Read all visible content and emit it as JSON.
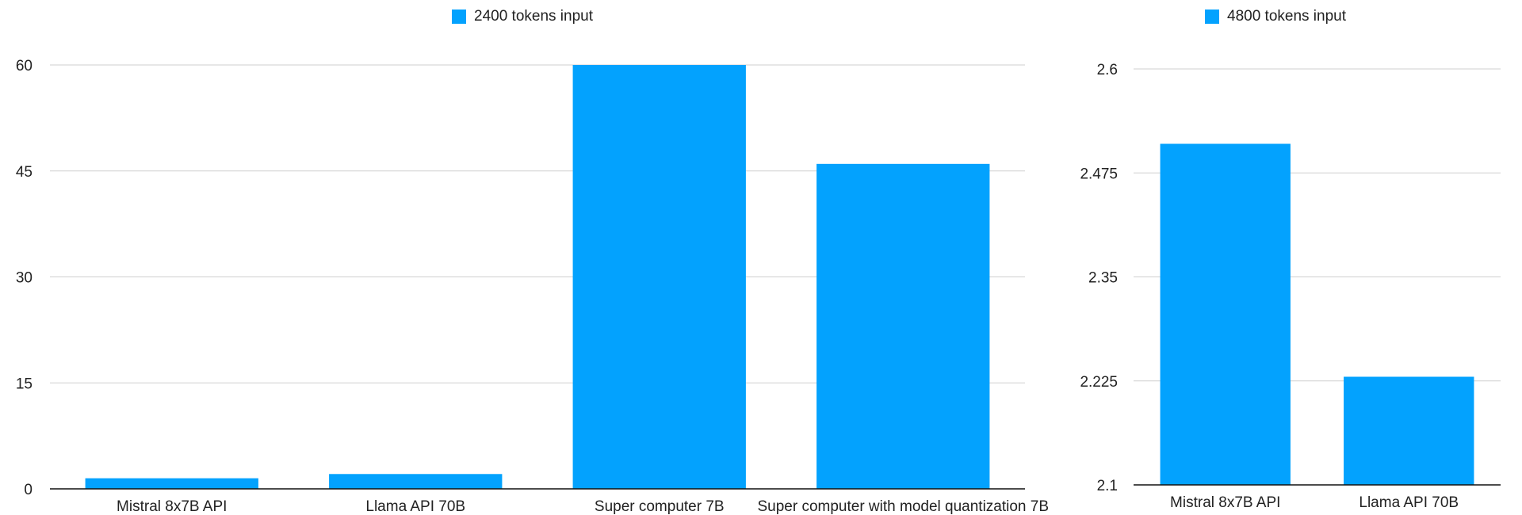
{
  "chart_data": [
    {
      "type": "bar",
      "legend": "2400 tokens input",
      "color": "#03a2fe",
      "categories": [
        "Mistral 8x7B API",
        "Llama API 70B",
        "Super computer 7B",
        "Super computer with model quantization 7B"
      ],
      "series": [
        {
          "name": "2400 tokens input",
          "values": [
            1.5,
            2.1,
            60,
            46
          ]
        }
      ],
      "yticks": [
        "0",
        "15",
        "30",
        "45",
        "60"
      ],
      "ylim": [
        0,
        60
      ],
      "grid": true,
      "legend_position": "top-center"
    },
    {
      "type": "bar",
      "legend": "4800 tokens input",
      "color": "#03a2fe",
      "categories": [
        "Mistral 8x7B API",
        "Llama API 70B"
      ],
      "series": [
        {
          "name": "4800 tokens input",
          "values": [
            2.51,
            2.23
          ]
        }
      ],
      "yticks": [
        "2.1",
        "2.225",
        "2.35",
        "2.475",
        "2.6"
      ],
      "ylim": [
        2.1,
        2.6
      ],
      "grid": true,
      "legend_position": "top-center"
    }
  ]
}
